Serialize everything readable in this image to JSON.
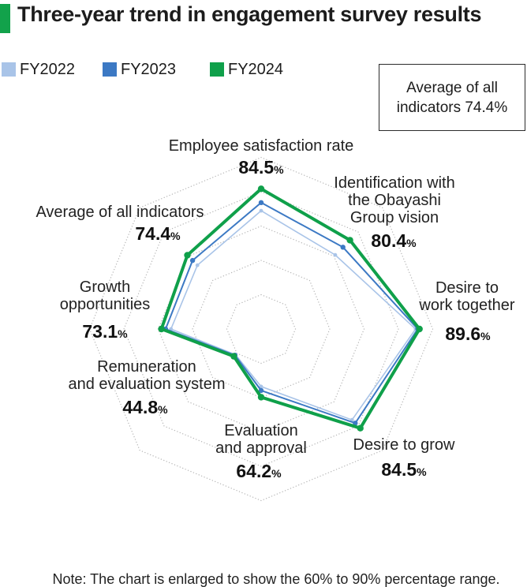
{
  "title": "Three-year trend in engagement survey results",
  "accent_color": "#12a24b",
  "legend": [
    {
      "label": "FY2022",
      "color": "#a9c4e8"
    },
    {
      "label": "FY2023",
      "color": "#3c79c4"
    },
    {
      "label": "FY2024",
      "color": "#0fa04a"
    }
  ],
  "callout_box": {
    "line1": "Average of all",
    "line2": "indicators 74.4%"
  },
  "note": "Note: The chart is enlarged to show the 60% to 90% percentage range.",
  "chart_data": {
    "type": "radar",
    "title": "Three-year trend in engagement survey results",
    "categories": [
      "Employee satisfaction rate",
      "Identification with the Obayashi Group vision",
      "Desire to work together",
      "Desire to grow",
      "Evaluation and approval",
      "Remuneration and evaluation system",
      "Growth opportunities",
      "Average of all indicators"
    ],
    "axis_label_lines": [
      [
        "Employee satisfaction rate"
      ],
      [
        "Identification with",
        "the Obayashi",
        "Group vision"
      ],
      [
        "Desire to",
        "work together"
      ],
      [
        "Desire to grow"
      ],
      [
        "Evaluation",
        "and approval"
      ],
      [
        "Remuneration",
        "and evaluation system"
      ],
      [
        "Growth",
        "opportunities"
      ],
      [
        "Average of all indicators"
      ]
    ],
    "value_labels": [
      "84.5",
      "80.4",
      "89.6",
      "84.5",
      "64.2",
      "44.8",
      "73.1",
      "74.4"
    ],
    "pct_sign": "%",
    "series": [
      {
        "name": "FY2022",
        "color": "#a9c4e8",
        "values": [
          78.3,
          74.5,
          88.5,
          81.2,
          61.2,
          44.0,
          70.4,
          70.4
        ]
      },
      {
        "name": "FY2023",
        "color": "#3c79c4",
        "values": [
          80.6,
          77.6,
          89.1,
          82.5,
          62.3,
          44.5,
          71.9,
          72.3
        ]
      },
      {
        "name": "FY2024",
        "color": "#0fa04a",
        "values": [
          84.5,
          80.4,
          89.6,
          84.5,
          64.2,
          44.8,
          73.1,
          74.4
        ]
      }
    ],
    "scale": {
      "displayed_range": "60% to 90%",
      "rings": 5,
      "grid_color": "#b5b5b5"
    }
  }
}
